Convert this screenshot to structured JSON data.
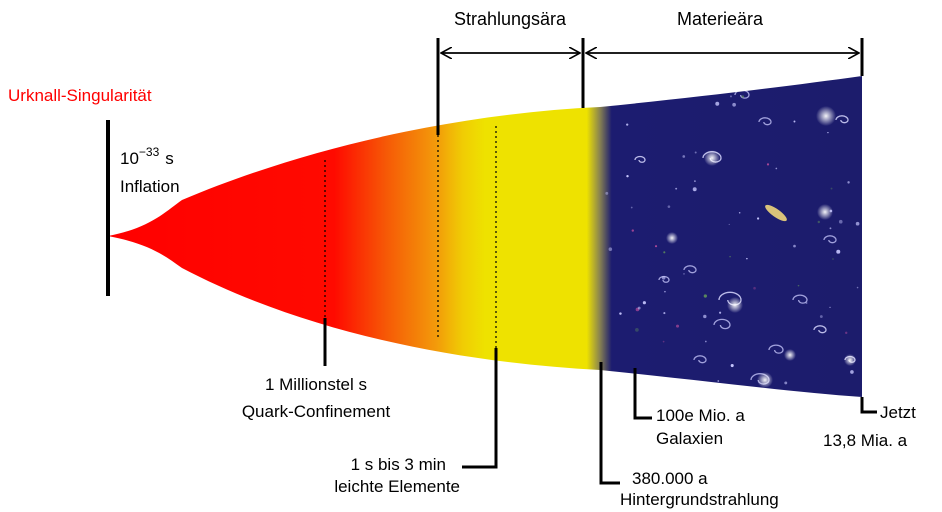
{
  "title": "",
  "colors": {
    "singularity": "#ff0000",
    "quark_red": "#ff0000",
    "orange": "#f48a0a",
    "yellow": "#eee000",
    "space": "#1a1a6e",
    "line": "#000000"
  },
  "eras": {
    "radiation": "Strahlungsära",
    "matter": "Materieära"
  },
  "singularity": "Urknall-Singularität",
  "inflation": {
    "time_base": "10",
    "time_exp": "−33",
    "time_unit": "s",
    "label": "Inflation"
  },
  "events": {
    "quark": {
      "time": "1 Millionstel s",
      "label": "Quark-Confinement"
    },
    "nucleo": {
      "time": "1 s bis 3 min",
      "label": "leichte Elemente"
    },
    "cmb": {
      "time": "380.000 a",
      "label": "Hintergrundstrahlung"
    },
    "galaxies": {
      "time": "100e Mio. a",
      "label": "Galaxien"
    },
    "now": {
      "time": "Jetzt",
      "label": "13,8 Mia. a"
    }
  }
}
